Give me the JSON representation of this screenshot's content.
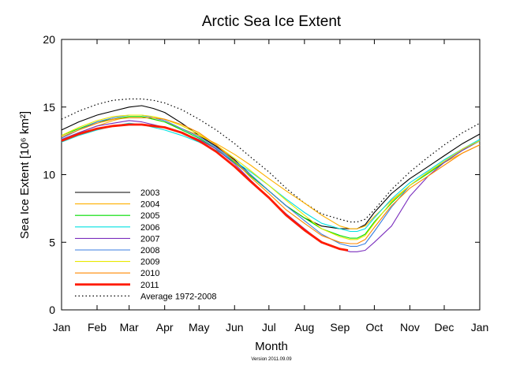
{
  "chart_data": {
    "type": "line",
    "title": "Arctic Sea Ice Extent",
    "xlabel": "Month",
    "ylabel": "Sea Ice Extent [10⁶ km²]",
    "footnote": "Version 2011.09.09",
    "ylim": [
      0,
      20
    ],
    "yticks": [
      0,
      5,
      10,
      15,
      20
    ],
    "xlim": [
      0,
      365
    ],
    "x_ticks": [
      {
        "label": "Jan",
        "day": 0
      },
      {
        "label": "Feb",
        "day": 31
      },
      {
        "label": "Mar",
        "day": 59
      },
      {
        "label": "Apr",
        "day": 90
      },
      {
        "label": "May",
        "day": 120
      },
      {
        "label": "Jun",
        "day": 151
      },
      {
        "label": "Jul",
        "day": 181
      },
      {
        "label": "Aug",
        "day": 212
      },
      {
        "label": "Sep",
        "day": 243
      },
      {
        "label": "Oct",
        "day": 273
      },
      {
        "label": "Nov",
        "day": 304
      },
      {
        "label": "Dec",
        "day": 334
      },
      {
        "label": "Jan",
        "day": 365
      }
    ],
    "x_unit": "day of year",
    "grid": false,
    "legend_position": "lower-left",
    "series": [
      {
        "name": "2003",
        "color": "#000000",
        "style": "solid",
        "x": [
          0,
          15,
          31,
          45,
          59,
          70,
          80,
          90,
          105,
          120,
          135,
          151,
          165,
          181,
          196,
          212,
          227,
          243,
          252,
          258,
          265,
          273,
          288,
          304,
          320,
          334,
          350,
          365
        ],
        "y": [
          13.3,
          13.9,
          14.4,
          14.7,
          15.0,
          15.1,
          14.9,
          14.6,
          13.8,
          12.9,
          12.1,
          11.1,
          10.0,
          8.8,
          7.7,
          6.8,
          6.2,
          6.0,
          6.0,
          6.0,
          6.3,
          7.2,
          8.6,
          9.7,
          10.6,
          11.4,
          12.3,
          13.0
        ]
      },
      {
        "name": "2004",
        "color": "#ffb000",
        "style": "solid",
        "x": [
          0,
          15,
          31,
          45,
          59,
          70,
          80,
          90,
          105,
          120,
          135,
          151,
          165,
          181,
          196,
          212,
          227,
          243,
          252,
          258,
          265,
          273,
          288,
          304,
          320,
          334,
          350,
          365
        ],
        "y": [
          12.6,
          13.1,
          13.6,
          14.0,
          14.3,
          14.3,
          14.1,
          13.9,
          13.4,
          12.9,
          12.3,
          11.5,
          10.7,
          9.7,
          8.8,
          7.9,
          7.0,
          6.2,
          6.0,
          6.0,
          6.2,
          6.9,
          8.1,
          9.2,
          10.2,
          10.9,
          11.6,
          12.2
        ]
      },
      {
        "name": "2005",
        "color": "#00dd00",
        "style": "solid",
        "x": [
          0,
          15,
          31,
          45,
          59,
          70,
          80,
          90,
          105,
          120,
          135,
          151,
          165,
          181,
          196,
          212,
          227,
          243,
          252,
          258,
          265,
          273,
          288,
          304,
          320,
          334,
          350,
          365
        ],
        "y": [
          12.9,
          13.4,
          13.9,
          14.1,
          14.3,
          14.3,
          14.1,
          13.9,
          13.3,
          12.7,
          11.9,
          10.9,
          9.9,
          8.8,
          7.7,
          6.8,
          6.0,
          5.5,
          5.3,
          5.3,
          5.6,
          6.5,
          7.9,
          9.2,
          10.1,
          10.9,
          11.8,
          12.5
        ]
      },
      {
        "name": "2006",
        "color": "#00e0e0",
        "style": "solid",
        "x": [
          0,
          15,
          31,
          45,
          59,
          70,
          80,
          90,
          105,
          120,
          135,
          151,
          165,
          181,
          196,
          212,
          227,
          243,
          252,
          258,
          265,
          273,
          288,
          304,
          320,
          334,
          350,
          365
        ],
        "y": [
          12.4,
          12.9,
          13.3,
          13.6,
          13.8,
          13.7,
          13.5,
          13.3,
          12.9,
          12.4,
          11.8,
          11.0,
          10.2,
          9.2,
          8.2,
          7.2,
          6.4,
          6.0,
          5.8,
          5.8,
          6.0,
          6.8,
          8.2,
          9.4,
          10.3,
          11.1,
          11.9,
          12.6
        ]
      },
      {
        "name": "2007",
        "color": "#7b2fbe",
        "style": "solid",
        "x": [
          0,
          15,
          31,
          45,
          59,
          70,
          80,
          90,
          105,
          120,
          135,
          151,
          165,
          181,
          196,
          212,
          227,
          243,
          252,
          258,
          265,
          273,
          288,
          304,
          320,
          334,
          350,
          365
        ],
        "y": [
          12.6,
          13.1,
          13.6,
          13.8,
          14.0,
          13.9,
          13.7,
          13.5,
          13.1,
          12.6,
          11.9,
          10.8,
          9.6,
          8.3,
          7.1,
          6.0,
          5.0,
          4.5,
          4.3,
          4.3,
          4.4,
          5.0,
          6.2,
          8.4,
          9.9,
          10.9,
          11.8,
          12.5
        ]
      },
      {
        "name": "2008",
        "color": "#3a7ee0",
        "style": "solid",
        "x": [
          0,
          15,
          31,
          45,
          59,
          70,
          80,
          90,
          105,
          120,
          135,
          151,
          165,
          181,
          196,
          212,
          227,
          243,
          252,
          258,
          265,
          273,
          288,
          304,
          320,
          334,
          350,
          365
        ],
        "y": [
          12.7,
          13.3,
          13.9,
          14.2,
          14.4,
          14.4,
          14.2,
          14.0,
          13.4,
          12.8,
          12.0,
          11.0,
          10.0,
          8.8,
          7.7,
          6.6,
          5.6,
          4.9,
          4.7,
          4.7,
          4.9,
          5.8,
          7.6,
          9.2,
          10.2,
          11.0,
          11.9,
          12.5
        ]
      },
      {
        "name": "2009",
        "color": "#e8e800",
        "style": "solid",
        "x": [
          0,
          15,
          31,
          45,
          59,
          70,
          80,
          90,
          105,
          120,
          135,
          151,
          165,
          181,
          196,
          212,
          227,
          243,
          252,
          258,
          265,
          273,
          288,
          304,
          320,
          334,
          350,
          365
        ],
        "y": [
          12.9,
          13.5,
          14.0,
          14.3,
          14.4,
          14.4,
          14.3,
          14.1,
          13.6,
          13.0,
          12.2,
          11.2,
          10.3,
          9.2,
          8.1,
          7.0,
          6.0,
          5.4,
          5.2,
          5.2,
          5.5,
          6.4,
          8.0,
          9.2,
          10.2,
          11.0,
          11.9,
          12.5
        ]
      },
      {
        "name": "2010",
        "color": "#ff8800",
        "style": "solid",
        "x": [
          0,
          15,
          31,
          45,
          59,
          70,
          80,
          90,
          105,
          120,
          135,
          151,
          165,
          181,
          196,
          212,
          227,
          243,
          252,
          258,
          265,
          273,
          288,
          304,
          320,
          334,
          350,
          365
        ],
        "y": [
          12.8,
          13.3,
          13.8,
          14.1,
          14.2,
          14.2,
          14.2,
          14.1,
          13.7,
          13.1,
          12.2,
          11.0,
          9.8,
          8.6,
          7.4,
          6.4,
          5.5,
          5.0,
          4.9,
          4.9,
          5.2,
          6.1,
          7.7,
          9.0,
          9.9,
          10.7,
          11.6,
          12.2
        ]
      },
      {
        "name": "2011",
        "color": "#ff1a00",
        "style": "bold",
        "x": [
          0,
          15,
          31,
          45,
          59,
          70,
          80,
          90,
          105,
          120,
          135,
          151,
          165,
          181,
          196,
          212,
          227,
          243,
          250
        ],
        "y": [
          12.5,
          13.0,
          13.4,
          13.6,
          13.7,
          13.7,
          13.6,
          13.5,
          13.1,
          12.5,
          11.7,
          10.6,
          9.5,
          8.3,
          7.0,
          5.9,
          5.0,
          4.5,
          4.4
        ]
      },
      {
        "name": "Average 1972-2008",
        "color": "#000000",
        "style": "dotted",
        "x": [
          0,
          15,
          31,
          45,
          59,
          70,
          80,
          90,
          105,
          120,
          135,
          151,
          165,
          181,
          196,
          212,
          227,
          243,
          252,
          258,
          265,
          273,
          288,
          304,
          320,
          334,
          350,
          365
        ],
        "y": [
          14.1,
          14.7,
          15.2,
          15.5,
          15.6,
          15.6,
          15.5,
          15.3,
          14.8,
          14.1,
          13.3,
          12.3,
          11.3,
          10.2,
          9.0,
          7.9,
          7.1,
          6.7,
          6.5,
          6.5,
          6.7,
          7.4,
          8.9,
          10.2,
          11.3,
          12.2,
          13.1,
          13.8
        ]
      }
    ]
  }
}
